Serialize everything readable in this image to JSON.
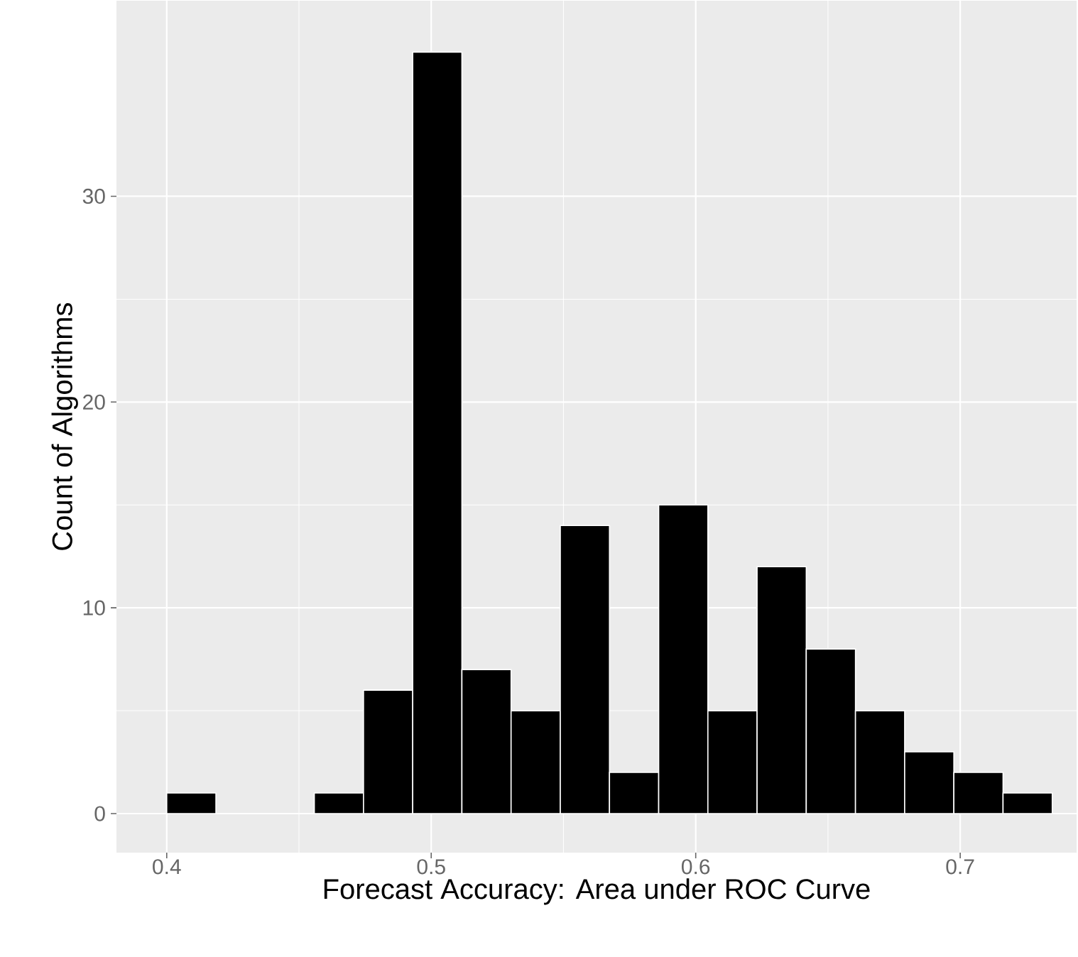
{
  "chart_data": {
    "type": "histogram",
    "xlabel": "Forecast Accuracy: Area under ROC Curve",
    "ylabel": "Count of Algorithms",
    "bins": [
      0.4,
      0.4186,
      0.4372,
      0.4558,
      0.4744,
      0.493,
      0.5116,
      0.5302,
      0.5488,
      0.5674,
      0.586,
      0.6046,
      0.6232,
      0.6418,
      0.6604,
      0.679,
      0.6976,
      0.7162,
      0.7348
    ],
    "values": [
      1,
      0,
      0,
      1,
      6,
      37,
      7,
      5,
      14,
      2,
      15,
      5,
      12,
      8,
      5,
      3,
      2,
      1
    ],
    "color": "#000000",
    "xlim": [
      0.381,
      0.744
    ],
    "ylim": [
      -1.9,
      39.5
    ],
    "xticks": [
      0.4,
      0.5,
      0.6,
      0.7
    ],
    "yticks": [
      0,
      10,
      20,
      30
    ],
    "grid": true
  }
}
